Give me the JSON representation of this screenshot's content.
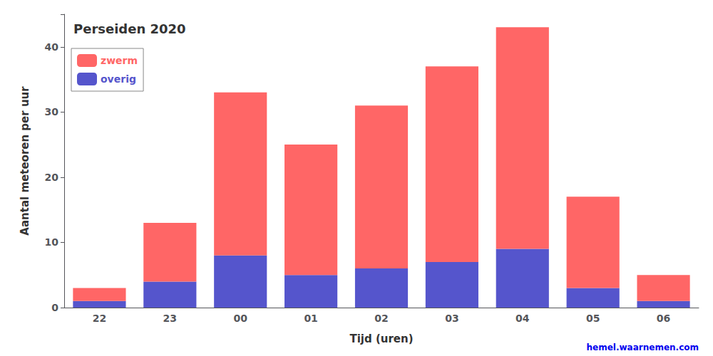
{
  "chart_data": {
    "type": "bar",
    "title": "Perseiden 2020",
    "xlabel": "Tijd (uren)",
    "ylabel": "Aantal meteoren per uur",
    "categories": [
      "22",
      "23",
      "00",
      "01",
      "02",
      "03",
      "04",
      "05",
      "06"
    ],
    "series": [
      {
        "name": "overig",
        "color": "#5555CC",
        "values": [
          1,
          4,
          8,
          5,
          6,
          7,
          9,
          3,
          1
        ]
      },
      {
        "name": "zwerm",
        "color": "#FF6666",
        "values": [
          2,
          9,
          25,
          20,
          25,
          30,
          34,
          14,
          4
        ]
      }
    ],
    "stacked": true,
    "ylim": [
      0,
      45
    ],
    "yticks": [
      0,
      10,
      20,
      30,
      40
    ],
    "grid": false,
    "legend": "upper left",
    "annotations": [
      {
        "text": "hemel.waarnemen.com",
        "color": "#0000EE"
      }
    ]
  }
}
